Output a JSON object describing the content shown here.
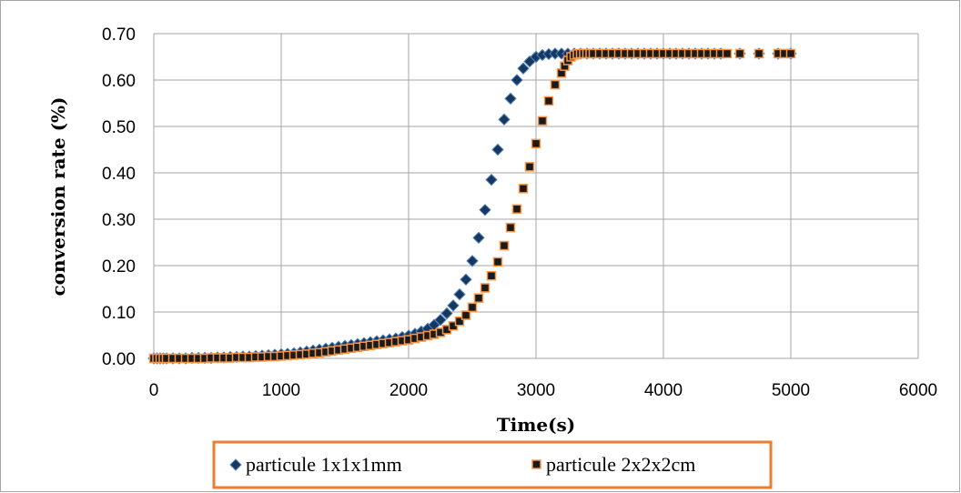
{
  "chart_data": {
    "type": "scatter",
    "title": "",
    "xlabel": "Time(s)",
    "ylabel": "conversion rate (%)",
    "xlim": [
      0,
      6000
    ],
    "ylim": [
      0,
      0.7
    ],
    "x_ticks": [
      "0",
      "1000",
      "2000",
      "3000",
      "4000",
      "5000",
      "6000"
    ],
    "y_ticks": [
      "0.00",
      "0.10",
      "0.20",
      "0.30",
      "0.40",
      "0.50",
      "0.60",
      "0.70"
    ],
    "grid": true,
    "legend_position": "bottom",
    "series": [
      {
        "name": "particule 1x1x1mm",
        "marker": "diamond",
        "color": "#17375e",
        "edge_color": "#4f81bd",
        "x": [
          0,
          25,
          50,
          75,
          100,
          150,
          200,
          250,
          300,
          350,
          400,
          450,
          500,
          550,
          600,
          650,
          700,
          750,
          800,
          850,
          900,
          950,
          1000,
          1050,
          1100,
          1150,
          1200,
          1250,
          1300,
          1350,
          1400,
          1450,
          1500,
          1550,
          1600,
          1650,
          1700,
          1750,
          1800,
          1850,
          1900,
          1950,
          2000,
          2050,
          2100,
          2150,
          2200,
          2250,
          2300,
          2350,
          2400,
          2450,
          2500,
          2550,
          2600,
          2650,
          2700,
          2750,
          2800,
          2850,
          2900,
          2950,
          3000,
          3050,
          3100,
          3150,
          3200,
          3250,
          3300,
          3350,
          3400,
          3450,
          3500,
          3550,
          3600,
          3650,
          3700,
          3750,
          3800,
          3850,
          3900,
          3950,
          4000,
          4050,
          4100,
          4150,
          4200,
          4250,
          4300,
          4350,
          4400,
          4450,
          4600,
          4750,
          4900,
          5000
        ],
        "y": [
          0.0,
          0.0,
          0.0,
          0.0,
          0.0,
          0.0,
          0.0,
          0.0,
          0.001,
          0.001,
          0.001,
          0.001,
          0.002,
          0.002,
          0.003,
          0.003,
          0.004,
          0.004,
          0.005,
          0.006,
          0.007,
          0.008,
          0.009,
          0.01,
          0.011,
          0.013,
          0.015,
          0.017,
          0.019,
          0.021,
          0.023,
          0.025,
          0.027,
          0.029,
          0.031,
          0.033,
          0.035,
          0.037,
          0.039,
          0.041,
          0.043,
          0.046,
          0.049,
          0.053,
          0.058,
          0.064,
          0.072,
          0.083,
          0.097,
          0.114,
          0.138,
          0.17,
          0.21,
          0.26,
          0.32,
          0.385,
          0.45,
          0.515,
          0.56,
          0.6,
          0.625,
          0.64,
          0.65,
          0.654,
          0.656,
          0.657,
          0.657,
          0.657,
          0.657,
          0.657,
          0.657,
          0.657,
          0.657,
          0.657,
          0.657,
          0.657,
          0.657,
          0.657,
          0.657,
          0.657,
          0.657,
          0.657,
          0.657,
          0.657,
          0.657,
          0.657,
          0.657,
          0.657,
          0.657,
          0.657,
          0.657,
          0.657,
          0.657,
          0.657,
          0.657,
          0.657
        ]
      },
      {
        "name": "particule 2x2x2cm",
        "marker": "square",
        "color": "#1a1a1a",
        "edge_color": "#f79646",
        "x": [
          0,
          25,
          50,
          75,
          100,
          150,
          200,
          250,
          300,
          350,
          400,
          450,
          500,
          550,
          600,
          650,
          700,
          750,
          800,
          850,
          900,
          950,
          1000,
          1050,
          1100,
          1150,
          1200,
          1250,
          1300,
          1350,
          1400,
          1450,
          1500,
          1550,
          1600,
          1650,
          1700,
          1750,
          1800,
          1850,
          1900,
          1950,
          2000,
          2050,
          2100,
          2150,
          2200,
          2250,
          2300,
          2350,
          2400,
          2450,
          2500,
          2550,
          2600,
          2650,
          2700,
          2750,
          2800,
          2850,
          2900,
          2950,
          3000,
          3050,
          3100,
          3150,
          3200,
          3225,
          3250,
          3275,
          3300,
          3325,
          3350,
          3375,
          3400,
          3425,
          3450,
          3500,
          3550,
          3600,
          3650,
          3700,
          3750,
          3800,
          3850,
          3900,
          3950,
          4000,
          4050,
          4100,
          4150,
          4200,
          4250,
          4300,
          4350,
          4400,
          4450,
          4500,
          4600,
          4750,
          4900,
          4950,
          5000
        ],
        "y": [
          0.0,
          0.0,
          0.0,
          0.0,
          0.0,
          0.0,
          0.0,
          0.0,
          0.0,
          0.0,
          0.0,
          0.001,
          0.001,
          0.001,
          0.001,
          0.002,
          0.002,
          0.002,
          0.003,
          0.003,
          0.004,
          0.004,
          0.005,
          0.006,
          0.007,
          0.008,
          0.009,
          0.011,
          0.012,
          0.014,
          0.016,
          0.018,
          0.02,
          0.022,
          0.024,
          0.026,
          0.028,
          0.03,
          0.032,
          0.034,
          0.036,
          0.038,
          0.04,
          0.043,
          0.046,
          0.049,
          0.052,
          0.056,
          0.062,
          0.07,
          0.08,
          0.093,
          0.11,
          0.13,
          0.152,
          0.178,
          0.208,
          0.243,
          0.282,
          0.322,
          0.366,
          0.413,
          0.463,
          0.512,
          0.555,
          0.59,
          0.615,
          0.63,
          0.642,
          0.65,
          0.654,
          0.656,
          0.657,
          0.657,
          0.657,
          0.657,
          0.657,
          0.657,
          0.657,
          0.657,
          0.657,
          0.657,
          0.657,
          0.657,
          0.657,
          0.657,
          0.657,
          0.657,
          0.657,
          0.657,
          0.657,
          0.657,
          0.657,
          0.657,
          0.657,
          0.657,
          0.657,
          0.657,
          0.657,
          0.657,
          0.657,
          0.657,
          0.657
        ]
      }
    ]
  },
  "legend_style": {
    "border_color": "#ed7d31"
  },
  "grid_color": "#a6a6a6",
  "frame_color": "#a6a6a6"
}
